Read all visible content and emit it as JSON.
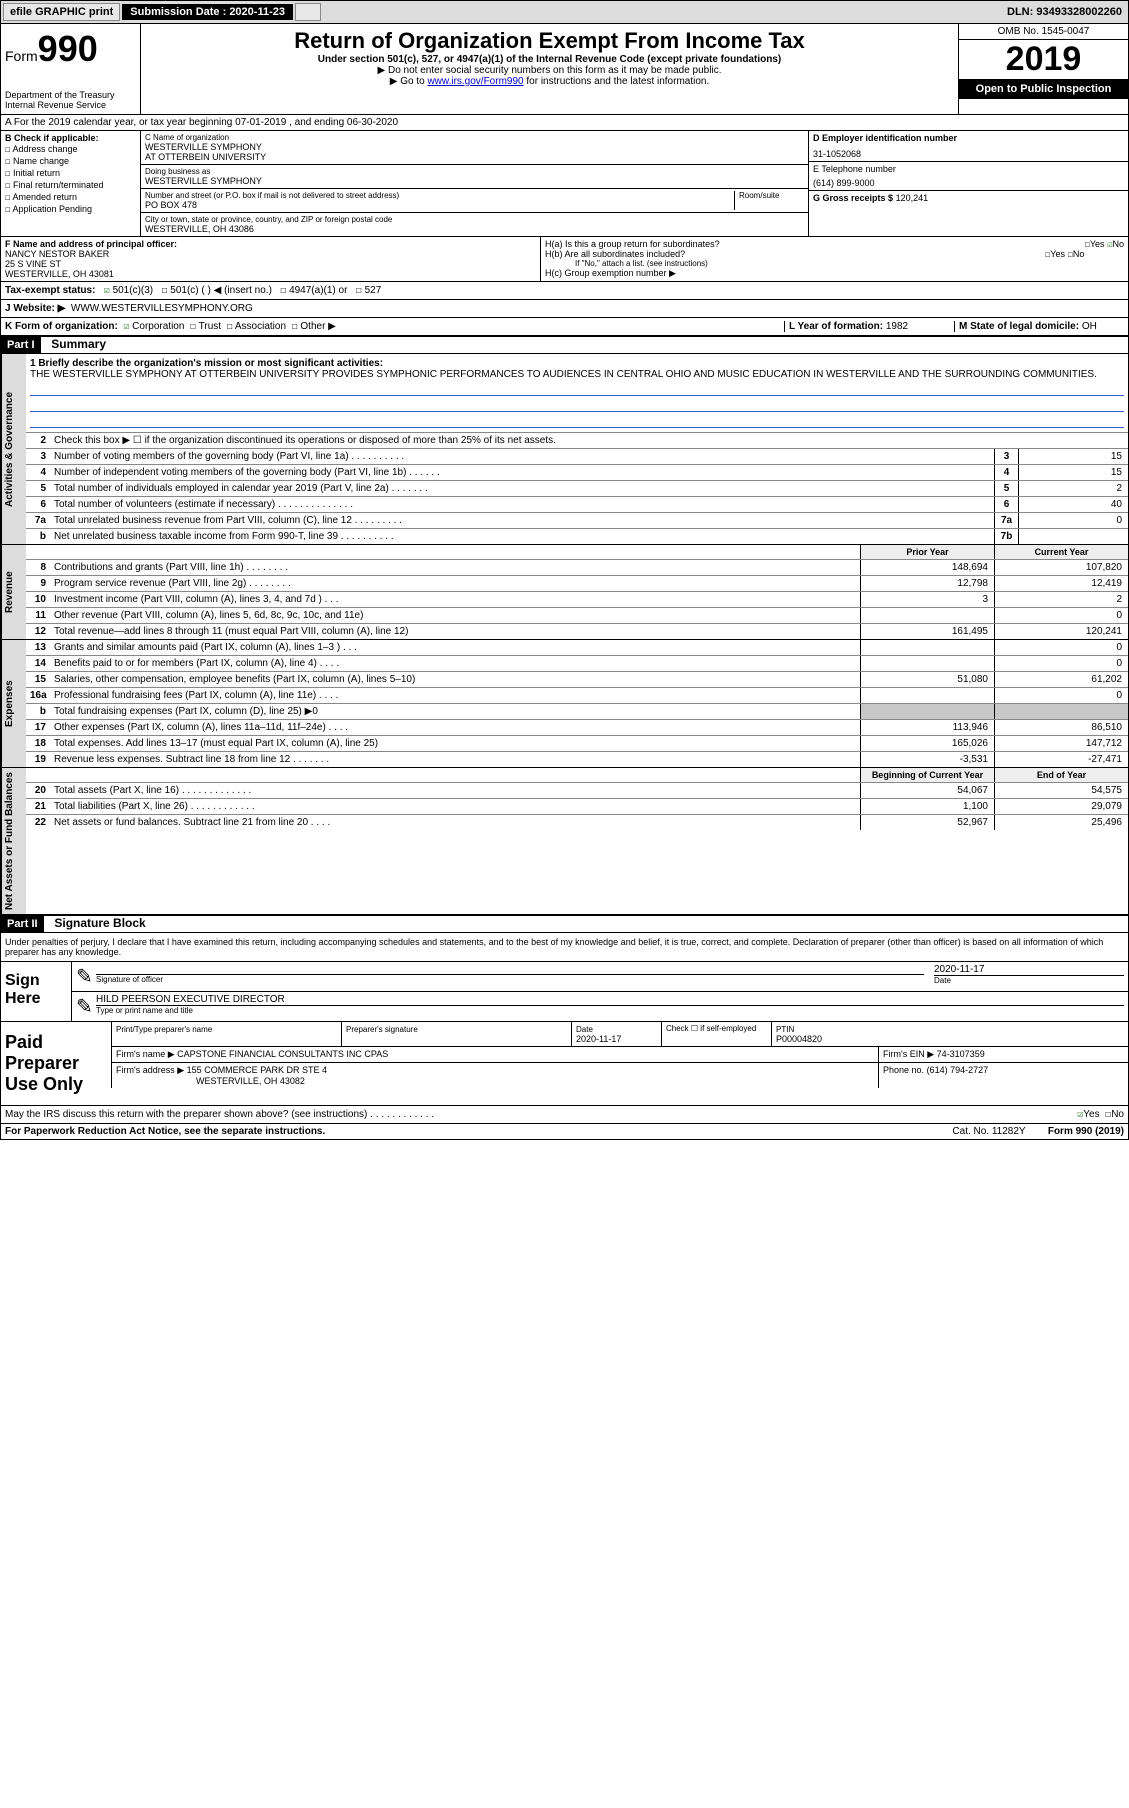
{
  "topbar": {
    "efile": "efile GRAPHIC print",
    "subdate_label": "Submission Date : 2020-11-23",
    "dln": "DLN: 93493328002260"
  },
  "header": {
    "form_label": "Form",
    "form_num": "990",
    "dept": "Department of the Treasury",
    "irs": "Internal Revenue Service",
    "title": "Return of Organization Exempt From Income Tax",
    "undersec": "Under section 501(c), 527, or 4947(a)(1) of the Internal Revenue Code (except private foundations)",
    "nossn": "▶ Do not enter social security numbers on this form as it may be made public.",
    "goto_pre": "▶ Go to ",
    "goto_link": "www.irs.gov/Form990",
    "goto_post": " for instructions and the latest information.",
    "omb": "OMB No. 1545-0047",
    "year": "2019",
    "inspect": "Open to Public Inspection"
  },
  "rowA": "A For the 2019 calendar year, or tax year beginning 07-01-2019    , and ending 06-30-2020",
  "B": {
    "label": "B Check if applicable:",
    "items": [
      "Address change",
      "Name change",
      "Initial return",
      "Final return/terminated",
      "Amended return",
      "Application Pending"
    ]
  },
  "C": {
    "name_lbl": "C Name of organization",
    "name1": "WESTERVILLE SYMPHONY",
    "name2": "AT OTTERBEIN UNIVERSITY",
    "dba_lbl": "Doing business as",
    "dba": "WESTERVILLE SYMPHONY",
    "addr_lbl": "Number and street (or P.O. box if mail is not delivered to street address)",
    "room_lbl": "Room/suite",
    "addr": "PO BOX 478",
    "city_lbl": "City or town, state or province, country, and ZIP or foreign postal code",
    "city": "WESTERVILLE, OH  43086"
  },
  "D": {
    "lbl": "D Employer identification number",
    "val": "31-1052068"
  },
  "E": {
    "lbl": "E Telephone number",
    "val": "(614) 899-9000"
  },
  "G": {
    "lbl": "G Gross receipts $",
    "val": "120,241"
  },
  "F": {
    "lbl": "F  Name and address of principal officer:",
    "name": "NANCY NESTOR BAKER",
    "addr1": "25 S VINE ST",
    "addr2": "WESTERVILLE, OH  43081"
  },
  "H": {
    "a": "H(a)  Is this a group return for subordinates?",
    "a_yes": "Yes",
    "a_no": "No",
    "b": "H(b)  Are all subordinates included?",
    "b_yes": "Yes",
    "b_no": "No",
    "b_note": "If \"No,\" attach a list. (see instructions)",
    "c": "H(c)  Group exemption number ▶"
  },
  "I": {
    "lbl": "Tax-exempt status:",
    "opts": [
      "501(c)(3)",
      "501(c) (  ) ◀ (insert no.)",
      "4947(a)(1) or",
      "527"
    ]
  },
  "J": {
    "lbl": "J   Website: ▶",
    "val": "WWW.WESTERVILLESYMPHONY.ORG"
  },
  "K": {
    "lbl": "K Form of organization:",
    "opts": [
      "Corporation",
      "Trust",
      "Association",
      "Other ▶"
    ],
    "L_lbl": "L Year of formation:",
    "L_val": "1982",
    "M_lbl": "M State of legal domicile:",
    "M_val": "OH"
  },
  "partI": {
    "hdr": "Part I",
    "title": "Summary"
  },
  "mission": {
    "q": "1 Briefly describe the organization's mission or most significant activities:",
    "text": "THE WESTERVILLE SYMPHONY AT OTTERBEIN UNIVERSITY PROVIDES SYMPHONIC PERFORMANCES TO AUDIENCES IN CENTRAL OHIO AND MUSIC EDUCATION IN WESTERVILLE AND THE SURROUNDING COMMUNITIES."
  },
  "gov_lines": [
    {
      "n": "2",
      "t": "Check this box ▶ ☐  if the organization discontinued its operations or disposed of more than 25% of its net assets.",
      "box": "",
      "v": ""
    },
    {
      "n": "3",
      "t": "Number of voting members of the governing body (Part VI, line 1a)  .    .    .    .    .    .    .    .    .    .",
      "box": "3",
      "v": "15"
    },
    {
      "n": "4",
      "t": "Number of independent voting members of the governing body (Part VI, line 1b)  .    .    .    .    .    .",
      "box": "4",
      "v": "15"
    },
    {
      "n": "5",
      "t": "Total number of individuals employed in calendar year 2019 (Part V, line 2a)  .    .    .    .    .    .    .",
      "box": "5",
      "v": "2"
    },
    {
      "n": "6",
      "t": "Total number of volunteers (estimate if necessary)    .    .    .    .    .    .    .    .    .    .    .    .    .    .",
      "box": "6",
      "v": "40"
    },
    {
      "n": "7a",
      "t": "Total unrelated business revenue from Part VIII, column (C), line 12    .    .    .    .    .    .    .    .    .",
      "box": "7a",
      "v": "0"
    },
    {
      "n": "b",
      "t": "Net unrelated business taxable income from Form 990-T, line 39    .    .    .    .    .    .    .    .    .    .",
      "box": "7b",
      "v": ""
    }
  ],
  "rev_hdr": {
    "py": "Prior Year",
    "cy": "Current Year"
  },
  "rev_lines": [
    {
      "n": "8",
      "t": "Contributions and grants (Part VIII, line 1h)  .    .    .    .    .    .    .    .",
      "py": "148,694",
      "cy": "107,820"
    },
    {
      "n": "9",
      "t": "Program service revenue (Part VIII, line 2g)    .    .    .    .    .    .    .    .",
      "py": "12,798",
      "cy": "12,419"
    },
    {
      "n": "10",
      "t": "Investment income (Part VIII, column (A), lines 3, 4, and 7d )    .    .    .",
      "py": "3",
      "cy": "2"
    },
    {
      "n": "11",
      "t": "Other revenue (Part VIII, column (A), lines 5, 6d, 8c, 9c, 10c, and 11e)",
      "py": "",
      "cy": "0"
    },
    {
      "n": "12",
      "t": "Total revenue—add lines 8 through 11 (must equal Part VIII, column (A), line 12)",
      "py": "161,495",
      "cy": "120,241"
    }
  ],
  "exp_lines": [
    {
      "n": "13",
      "t": "Grants and similar amounts paid (Part IX, column (A), lines 1–3 )  .    .    .",
      "py": "",
      "cy": "0"
    },
    {
      "n": "14",
      "t": "Benefits paid to or for members (Part IX, column (A), line 4)  .    .    .    .",
      "py": "",
      "cy": "0"
    },
    {
      "n": "15",
      "t": "Salaries, other compensation, employee benefits (Part IX, column (A), lines 5–10)",
      "py": "51,080",
      "cy": "61,202"
    },
    {
      "n": "16a",
      "t": "Professional fundraising fees (Part IX, column (A), line 11e)  .    .    .    .",
      "py": "",
      "cy": "0"
    },
    {
      "n": "b",
      "t": "Total fundraising expenses (Part IX, column (D), line 25) ▶0",
      "py": "",
      "cy": "",
      "shaded": true
    },
    {
      "n": "17",
      "t": "Other expenses (Part IX, column (A), lines 11a–11d, 11f–24e)  .    .    .    .",
      "py": "113,946",
      "cy": "86,510"
    },
    {
      "n": "18",
      "t": "Total expenses. Add lines 13–17 (must equal Part IX, column (A), line 25)",
      "py": "165,026",
      "cy": "147,712"
    },
    {
      "n": "19",
      "t": "Revenue less expenses. Subtract line 18 from line 12  .    .    .    .    .    .    .",
      "py": "-3,531",
      "cy": "-27,471"
    }
  ],
  "na_hdr": {
    "py": "Beginning of Current Year",
    "cy": "End of Year"
  },
  "na_lines": [
    {
      "n": "20",
      "t": "Total assets (Part X, line 16)  .    .    .    .    .    .    .    .    .    .    .    .    .",
      "py": "54,067",
      "cy": "54,575"
    },
    {
      "n": "21",
      "t": "Total liabilities (Part X, line 26)  .    .    .    .    .    .    .    .    .    .    .    .",
      "py": "1,100",
      "cy": "29,079"
    },
    {
      "n": "22",
      "t": "Net assets or fund balances. Subtract line 21 from line 20  .    .    .    .",
      "py": "52,967",
      "cy": "25,496"
    }
  ],
  "vtabs": {
    "gov": "Activities & Governance",
    "rev": "Revenue",
    "exp": "Expenses",
    "na": "Net Assets or Fund Balances"
  },
  "partII": {
    "hdr": "Part II",
    "title": "Signature Block"
  },
  "sig": {
    "decl": "Under penalties of perjury, I declare that I have examined this return, including accompanying schedules and statements, and to the best of my knowledge and belief, it is true, correct, and complete. Declaration of preparer (other than officer) is based on all information of which preparer has any knowledge.",
    "here": "Sign Here",
    "sig_of": "Signature of officer",
    "date_lbl": "Date",
    "date": "2020-11-17",
    "name": "HILD PEERSON  EXECUTIVE DIRECTOR",
    "name_lbl": "Type or print name and title"
  },
  "paid": {
    "label": "Paid Preparer Use Only",
    "h1": "Print/Type preparer's name",
    "h2": "Preparer's signature",
    "h3": "Date",
    "date": "2020-11-17",
    "h4": "Check ☐ if self-employed",
    "h5": "PTIN",
    "ptin": "P00004820",
    "firm_lbl": "Firm's name     ▶",
    "firm": "CAPSTONE FINANCIAL CONSULTANTS INC CPAS",
    "ein_lbl": "Firm's EIN ▶",
    "ein": "74-3107359",
    "addr_lbl": "Firm's address ▶",
    "addr1": "155 COMMERCE PARK DR STE 4",
    "addr2": "WESTERVILLE, OH  43082",
    "phone_lbl": "Phone no.",
    "phone": "(614) 794-2727"
  },
  "discuss": {
    "q": "May the IRS discuss this return with the preparer shown above? (see instructions)    .    .    .    .    .    .    .    .    .    .    .    .",
    "yes": "Yes",
    "no": "No"
  },
  "footer": {
    "left": "For Paperwork Reduction Act Notice, see the separate instructions.",
    "mid": "Cat. No. 11282Y",
    "right": "Form 990 (2019)"
  }
}
